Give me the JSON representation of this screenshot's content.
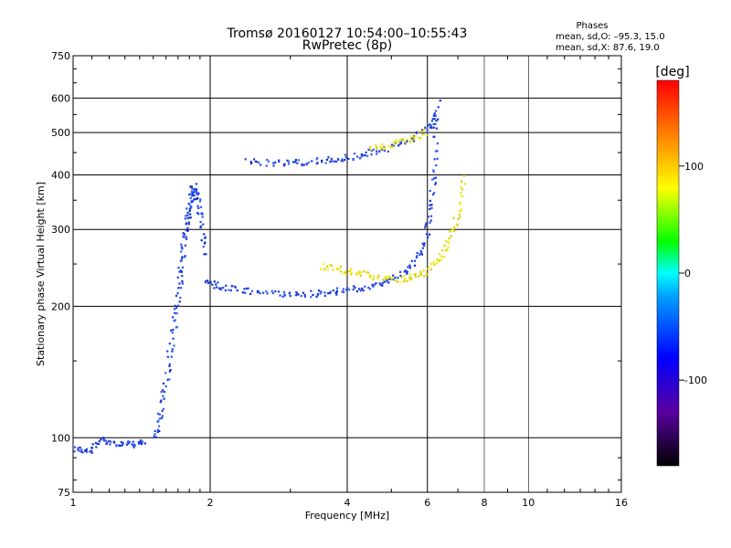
{
  "header": {
    "title": "Tromsø 20160127 10:54:00–10:55:43",
    "subtitle": "RwPretec (8p)",
    "phase_heading": "Phases",
    "phase_o": "mean, sd,O: –95.3, 15.0",
    "phase_x": "mean, sd,X:  87.6, 19.0"
  },
  "chart_data": {
    "type": "scatter",
    "title": "Tromsø 20160127 10:54:00–10:55:43",
    "subtitle": "RwPretec (8p)",
    "xlabel": "Frequency [MHz]",
    "ylabel": "Stationary phase Virtual Height [km]",
    "x_scale": "log",
    "y_scale": "log",
    "xlim": [
      1,
      16
    ],
    "ylim": [
      75,
      750
    ],
    "x_ticks": [
      1,
      2,
      4,
      6,
      8,
      10,
      16
    ],
    "x_tick_labels": [
      "1",
      "2",
      "4",
      "6",
      "8",
      "10",
      "16"
    ],
    "y_ticks": [
      75,
      100,
      200,
      300,
      400,
      500,
      600,
      750
    ],
    "y_tick_labels": [
      "75",
      "100",
      "200",
      "300",
      "400",
      "500",
      "600",
      "750"
    ],
    "grid": true,
    "grid_major_x": [
      2,
      4,
      6
    ],
    "grid_minor_x": [
      8,
      10
    ],
    "grid_y": [
      100,
      200,
      300,
      400,
      500,
      600
    ],
    "colorbar": {
      "label": "[deg]",
      "range": [
        -180,
        180
      ],
      "ticks": [
        100,
        0,
        -100
      ],
      "tick_labels": [
        "100",
        "0",
        "-100"
      ],
      "colors": [
        "#000000",
        "#5a00a0",
        "#0000ff",
        "#00a0ff",
        "#00ffff",
        "#00ff00",
        "#ffff00",
        "#ff8000",
        "#ff0000"
      ]
    },
    "series": [
      {
        "name": "O",
        "color": "#1a3ddb",
        "traces": [
          {
            "kind": "Es",
            "x": [
              1.0,
              1.08,
              1.15,
              1.25,
              1.35,
              1.42
            ],
            "y": [
              95,
              93,
              100,
              97,
              97,
              98
            ]
          },
          {
            "kind": "E-rise",
            "x": [
              1.5,
              1.55,
              1.6,
              1.65,
              1.7,
              1.72,
              1.75
            ],
            "y": [
              100,
              115,
              140,
              175,
              210,
              250,
              290
            ]
          },
          {
            "kind": "F1-cusp",
            "x": [
              1.75,
              1.78,
              1.8,
              1.83,
              1.86,
              1.9,
              1.95
            ],
            "y": [
              290,
              320,
              350,
              380,
              360,
              320,
              260
            ]
          },
          {
            "kind": "F2-O",
            "x": [
              1.95,
              2.1,
              2.4,
              2.8,
              3.2,
              3.6,
              4.0,
              4.5,
              5.0,
              5.5,
              5.9,
              6.1,
              6.2,
              6.3
            ],
            "y": [
              230,
              222,
              218,
              215,
              214,
              216,
              219,
              223,
              232,
              248,
              280,
              340,
              430,
              600
            ]
          },
          {
            "kind": "multihop",
            "x": [
              2.4,
              2.8,
              3.2,
              3.6,
              4.0,
              4.5,
              5.0,
              5.5,
              6.0,
              6.3
            ],
            "y": [
              430,
              428,
              430,
              434,
              440,
              452,
              465,
              485,
              515,
              560
            ]
          }
        ]
      },
      {
        "name": "X",
        "color": "#e0e020",
        "traces": [
          {
            "kind": "F2-X",
            "x": [
              3.5,
              3.9,
              4.3,
              4.8,
              5.3,
              5.8,
              6.3,
              6.7,
              7.0,
              7.2
            ],
            "y": [
              248,
              243,
              238,
              233,
              232,
              238,
              255,
              285,
              330,
              400
            ]
          },
          {
            "kind": "multihop-X",
            "x": [
              4.5,
              5.0,
              5.5,
              6.0
            ],
            "y": [
              462,
              472,
              487,
              505
            ]
          }
        ]
      }
    ],
    "notes": "scatter points coloured by phase; O-mode mean -95.3 deg, X-mode mean 87.6 deg"
  }
}
